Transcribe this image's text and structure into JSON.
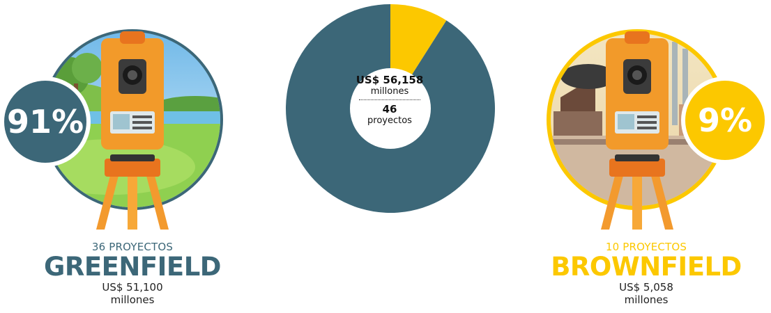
{
  "colors": {
    "greenfield": "#3c6778",
    "brownfield": "#fcc800"
  },
  "center": {
    "amount": "US$ 56,158",
    "amount_unit": "millones",
    "count": "46",
    "count_unit": "proyectos"
  },
  "greenfield": {
    "percent": "91%",
    "count_label": "36 PROYECTOS",
    "name": "GREENFIELD",
    "amount": "US$ 51,100",
    "amount_unit": "millones"
  },
  "brownfield": {
    "percent": "9%",
    "count_label": "10 PROYECTOS",
    "name": "BROWNFIELD",
    "amount": "US$ 5,058",
    "amount_unit": "millones"
  },
  "chart_data": {
    "type": "pie",
    "categories": [
      "Greenfield",
      "Brownfield"
    ],
    "values": [
      91,
      9
    ],
    "slice_colors": [
      "#3c6778",
      "#fcc800"
    ]
  }
}
